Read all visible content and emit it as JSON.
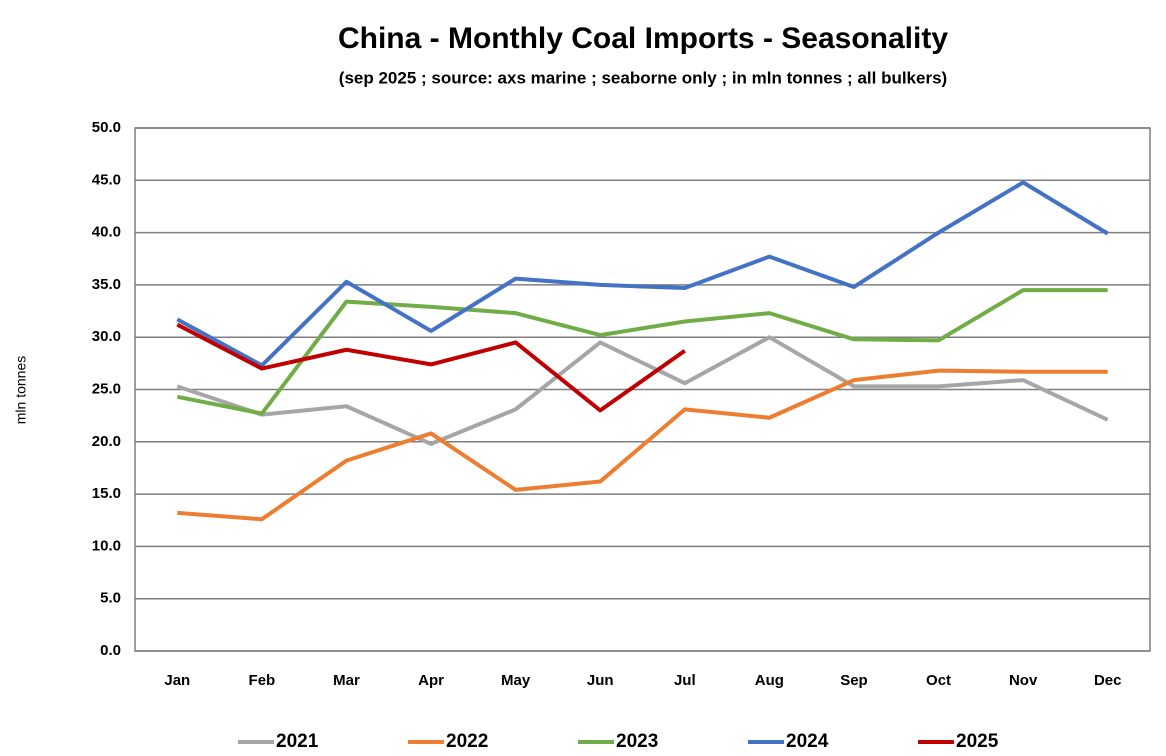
{
  "chart_data": {
    "type": "line",
    "title": "China - Monthly Coal Imports - Seasonality",
    "subtitle": "(sep 2025 ; source: axs marine ; seaborne only ; in mln tonnes ; all bulkers)",
    "y_label": "mln tonnes",
    "categories": [
      "Jan",
      "Feb",
      "Mar",
      "Apr",
      "May",
      "Jun",
      "Jul",
      "Aug",
      "Sep",
      "Oct",
      "Nov",
      "Dec"
    ],
    "series": [
      {
        "name": "2021",
        "color": "#a6a6a6",
        "values": [
          25.3,
          22.6,
          23.4,
          19.8,
          23.1,
          29.5,
          25.6,
          30.0,
          25.3,
          25.3,
          25.9,
          22.1
        ]
      },
      {
        "name": "2022",
        "color": "#ed7d31",
        "values": [
          13.2,
          12.6,
          18.2,
          20.8,
          15.4,
          16.2,
          23.1,
          22.3,
          25.9,
          26.8,
          26.7,
          26.7
        ]
      },
      {
        "name": "2023",
        "color": "#70ad47",
        "values": [
          24.3,
          22.7,
          33.4,
          32.9,
          32.3,
          30.2,
          31.5,
          32.3,
          29.8,
          29.7,
          34.5,
          34.5
        ]
      },
      {
        "name": "2024",
        "color": "#4472c4",
        "values": [
          31.7,
          27.3,
          35.3,
          30.6,
          35.6,
          35.0,
          34.7,
          37.7,
          34.8,
          40.0,
          44.8,
          39.9
        ]
      },
      {
        "name": "2025",
        "color": "#c00000",
        "values": [
          31.2,
          27.0,
          28.8,
          27.4,
          29.5,
          23.0,
          28.7,
          null,
          null,
          null,
          null,
          null
        ]
      }
    ],
    "ylim": [
      0,
      50
    ],
    "yticks": [
      {
        "value": 0,
        "label": "0.0"
      },
      {
        "value": 5,
        "label": "5.0"
      },
      {
        "value": 10,
        "label": "10.0"
      },
      {
        "value": 15,
        "label": "15.0"
      },
      {
        "value": 20,
        "label": "20.0"
      },
      {
        "value": 25,
        "label": "25.0"
      },
      {
        "value": 30,
        "label": "30.0"
      },
      {
        "value": 35,
        "label": "35.0"
      },
      {
        "value": 40,
        "label": "40.0"
      },
      {
        "value": 45,
        "label": "45.0"
      },
      {
        "value": 50,
        "label": "50.0"
      }
    ],
    "grid": true,
    "legend": "bottom"
  }
}
